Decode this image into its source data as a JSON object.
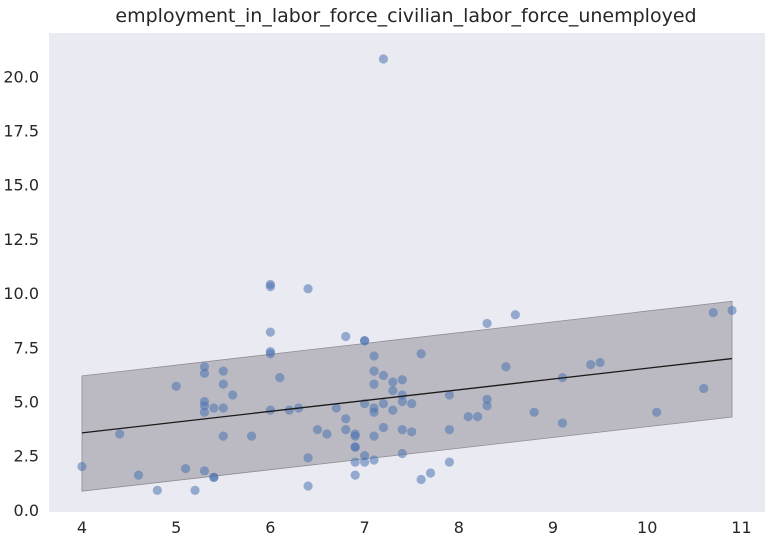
{
  "chart_data": {
    "type": "scatter",
    "title": "employment_in_labor_force_civilian_labor_force_unemployed",
    "xlabel": "",
    "ylabel": "",
    "xlim": [
      3.65,
      11.25
    ],
    "ylim": [
      -0.1,
      22.0
    ],
    "xticks": [
      4,
      5,
      6,
      7,
      8,
      9,
      10,
      11
    ],
    "xtick_labels": [
      "4",
      "5",
      "6",
      "7",
      "8",
      "9",
      "10",
      "11"
    ],
    "yticks": [
      0.0,
      2.5,
      5.0,
      7.5,
      10.0,
      12.5,
      15.0,
      17.5,
      20.0
    ],
    "ytick_labels": [
      "0.0",
      "2.5",
      "5.0",
      "7.5",
      "10.0",
      "12.5",
      "15.0",
      "17.5",
      "20.0"
    ],
    "grid": false,
    "colors": {
      "background": "#eaeaf2",
      "points": "#4c72b0",
      "band": "#a9a8ae",
      "fit_line": "#1a1a1a",
      "text": "#262626"
    },
    "fit_line": {
      "x": [
        4.0,
        10.9
      ],
      "y": [
        3.55,
        6.98
      ]
    },
    "band": {
      "x": [
        4.0,
        10.9
      ],
      "upper": [
        6.18,
        9.62
      ],
      "lower": [
        0.86,
        4.28
      ]
    },
    "points": [
      [
        4.0,
        2.0
      ],
      [
        4.4,
        3.5
      ],
      [
        4.6,
        1.6
      ],
      [
        4.8,
        0.9
      ],
      [
        5.0,
        5.7
      ],
      [
        5.1,
        1.9
      ],
      [
        5.2,
        0.9
      ],
      [
        5.3,
        6.6
      ],
      [
        5.3,
        6.3
      ],
      [
        5.3,
        5.0
      ],
      [
        5.3,
        4.8
      ],
      [
        5.3,
        4.5
      ],
      [
        5.3,
        1.8
      ],
      [
        5.4,
        1.5
      ],
      [
        5.4,
        1.5
      ],
      [
        5.4,
        4.7
      ],
      [
        5.5,
        6.4
      ],
      [
        5.5,
        5.8
      ],
      [
        5.5,
        4.7
      ],
      [
        5.5,
        3.4
      ],
      [
        5.6,
        5.3
      ],
      [
        5.8,
        3.4
      ],
      [
        6.0,
        10.4
      ],
      [
        6.0,
        10.3
      ],
      [
        6.0,
        8.2
      ],
      [
        6.0,
        7.3
      ],
      [
        6.0,
        7.2
      ],
      [
        6.0,
        4.6
      ],
      [
        6.1,
        6.1
      ],
      [
        6.2,
        4.6
      ],
      [
        6.3,
        4.7
      ],
      [
        6.4,
        10.2
      ],
      [
        6.4,
        2.4
      ],
      [
        6.4,
        1.1
      ],
      [
        6.5,
        3.7
      ],
      [
        6.6,
        3.5
      ],
      [
        6.7,
        4.7
      ],
      [
        6.8,
        8.0
      ],
      [
        6.8,
        4.2
      ],
      [
        6.8,
        3.7
      ],
      [
        6.9,
        3.5
      ],
      [
        6.9,
        3.4
      ],
      [
        6.9,
        2.9
      ],
      [
        6.9,
        2.9
      ],
      [
        6.9,
        2.2
      ],
      [
        6.9,
        1.6
      ],
      [
        7.0,
        7.8
      ],
      [
        7.0,
        7.8
      ],
      [
        7.0,
        4.9
      ],
      [
        7.0,
        2.5
      ],
      [
        7.0,
        2.2
      ],
      [
        7.1,
        7.1
      ],
      [
        7.1,
        6.4
      ],
      [
        7.1,
        5.8
      ],
      [
        7.1,
        4.7
      ],
      [
        7.1,
        4.5
      ],
      [
        7.1,
        3.4
      ],
      [
        7.1,
        2.3
      ],
      [
        7.2,
        20.8
      ],
      [
        7.2,
        6.2
      ],
      [
        7.2,
        4.9
      ],
      [
        7.2,
        3.8
      ],
      [
        7.3,
        5.9
      ],
      [
        7.3,
        5.5
      ],
      [
        7.3,
        4.6
      ],
      [
        7.4,
        6.0
      ],
      [
        7.4,
        5.3
      ],
      [
        7.4,
        5.0
      ],
      [
        7.4,
        3.7
      ],
      [
        7.4,
        2.6
      ],
      [
        7.5,
        4.9
      ],
      [
        7.5,
        3.6
      ],
      [
        7.6,
        7.2
      ],
      [
        7.6,
        1.4
      ],
      [
        7.7,
        1.7
      ],
      [
        7.9,
        5.3
      ],
      [
        7.9,
        3.7
      ],
      [
        7.9,
        2.2
      ],
      [
        8.1,
        4.3
      ],
      [
        8.2,
        4.3
      ],
      [
        8.3,
        8.6
      ],
      [
        8.3,
        5.1
      ],
      [
        8.3,
        4.8
      ],
      [
        8.5,
        6.6
      ],
      [
        8.6,
        9.0
      ],
      [
        8.8,
        4.5
      ],
      [
        9.1,
        6.1
      ],
      [
        9.1,
        4.0
      ],
      [
        9.4,
        6.7
      ],
      [
        9.5,
        6.8
      ],
      [
        10.1,
        4.5
      ],
      [
        10.6,
        5.6
      ],
      [
        10.7,
        9.1
      ],
      [
        10.9,
        9.2
      ]
    ]
  }
}
